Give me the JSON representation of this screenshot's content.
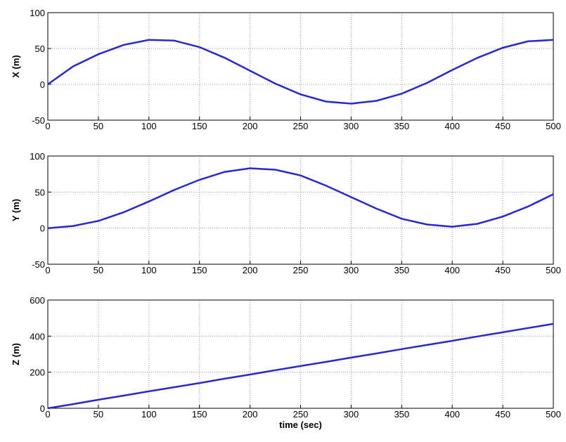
{
  "chart_data": [
    {
      "type": "line",
      "ylabel": "X (m)",
      "x": [
        0,
        25,
        50,
        75,
        100,
        125,
        150,
        175,
        200,
        225,
        250,
        275,
        300,
        325,
        350,
        375,
        400,
        425,
        450,
        475,
        500
      ],
      "series": [
        {
          "color": "#2828d0",
          "values": [
            0,
            25,
            42,
            55,
            62,
            61,
            52,
            37,
            19,
            1,
            -14,
            -24,
            -27,
            -23,
            -13,
            2,
            20,
            37,
            51,
            60,
            62
          ]
        }
      ],
      "xlim": [
        0,
        500
      ],
      "ylim": [
        -50,
        100
      ],
      "xticks": [
        0,
        50,
        100,
        150,
        200,
        250,
        300,
        350,
        400,
        450,
        500
      ],
      "yticks": [
        -50,
        0,
        50,
        100
      ],
      "grid": true
    },
    {
      "type": "line",
      "ylabel": "Y (m)",
      "x": [
        0,
        25,
        50,
        75,
        100,
        125,
        150,
        175,
        200,
        225,
        250,
        275,
        300,
        325,
        350,
        375,
        400,
        425,
        450,
        475,
        500
      ],
      "series": [
        {
          "color": "#2828d0",
          "values": [
            0,
            3,
            10,
            22,
            37,
            53,
            67,
            78,
            83,
            81,
            73,
            59,
            43,
            27,
            13,
            5,
            2,
            6,
            16,
            30,
            47
          ]
        }
      ],
      "xlim": [
        0,
        500
      ],
      "ylim": [
        -50,
        100
      ],
      "xticks": [
        0,
        50,
        100,
        150,
        200,
        250,
        300,
        350,
        400,
        450,
        500
      ],
      "yticks": [
        -50,
        0,
        50,
        100
      ],
      "grid": true
    },
    {
      "type": "line",
      "ylabel": "Z (m)",
      "xlabel": "time (sec)",
      "x": [
        0,
        25,
        50,
        75,
        100,
        125,
        150,
        175,
        200,
        225,
        250,
        275,
        300,
        325,
        350,
        375,
        400,
        425,
        450,
        475,
        500
      ],
      "series": [
        {
          "color": "#2828d0",
          "values": [
            0,
            23,
            47,
            70,
            94,
            117,
            140,
            164,
            187,
            211,
            234,
            257,
            281,
            304,
            328,
            351,
            374,
            398,
            421,
            445,
            468
          ]
        }
      ],
      "xlim": [
        0,
        500
      ],
      "ylim": [
        0,
        600
      ],
      "xticks": [
        0,
        50,
        100,
        150,
        200,
        250,
        300,
        350,
        400,
        450,
        500
      ],
      "yticks": [
        0,
        200,
        400,
        600
      ],
      "grid": true
    }
  ]
}
